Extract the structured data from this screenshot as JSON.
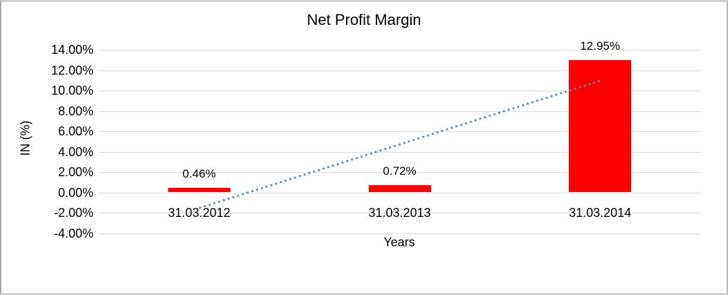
{
  "window": {
    "background": "#ffffff",
    "frame_color": "#bdbdbd"
  },
  "chart_data": {
    "type": "bar",
    "title": "Net Profit Margin",
    "xlabel": "Years",
    "ylabel": "IN (%)",
    "categories": [
      "31.03.2012",
      "31.03.2013",
      "31.03.2014"
    ],
    "values": [
      0.46,
      0.72,
      12.95
    ],
    "data_labels": [
      "0.46%",
      "0.72%",
      "12.95%"
    ],
    "ylim": [
      -4,
      14
    ],
    "ytick_step": 2,
    "ytick_labels": [
      "14.00%",
      "12.00%",
      "10.00%",
      "8.00%",
      "6.00%",
      "4.00%",
      "2.00%",
      "0.00%",
      "-2.00%",
      "-4.00%"
    ],
    "grid": true,
    "legend": false,
    "trendline": {
      "type": "linear",
      "style": "dotted"
    },
    "colors": {
      "bar": "#ff0000",
      "trendline": "#4f86c6",
      "gridline": "#d9d9d9",
      "text": "#000000"
    }
  }
}
